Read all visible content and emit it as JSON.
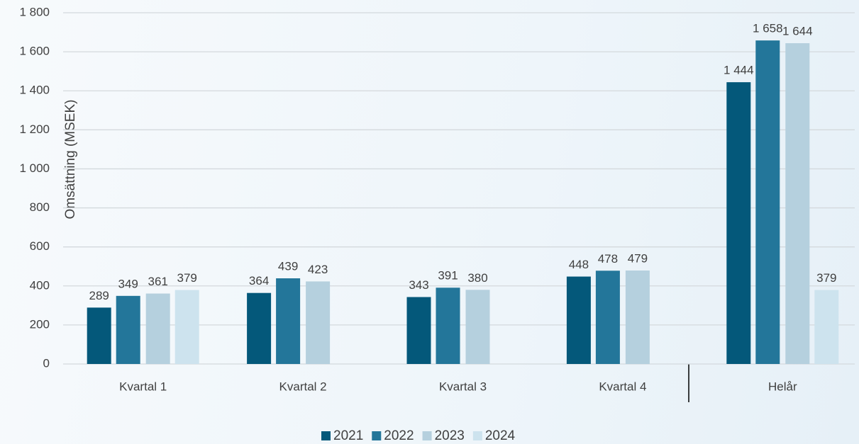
{
  "chart_data": {
    "type": "bar",
    "y_label": "Omsättning (MSEK)",
    "categories": [
      "Kvartal 1",
      "Kvartal 2",
      "Kvartal 3",
      "Kvartal 4",
      "Helår"
    ],
    "series": [
      {
        "name": "2021",
        "color": "#04587a",
        "values": [
          289,
          364,
          343,
          448,
          1444
        ],
        "value_labels": [
          "289",
          "364",
          "343",
          "448",
          "1 444"
        ]
      },
      {
        "name": "2022",
        "color": "#23769a",
        "values": [
          349,
          439,
          391,
          478,
          1658
        ],
        "value_labels": [
          "349",
          "439",
          "391",
          "478",
          "1 658"
        ]
      },
      {
        "name": "2023",
        "color": "#b5d0de",
        "values": [
          361,
          423,
          380,
          479,
          1644
        ],
        "value_labels": [
          "361",
          "423",
          "380",
          "479",
          "1 644"
        ]
      },
      {
        "name": "2024",
        "color": "#cde3ee",
        "values": [
          379,
          null,
          null,
          null,
          379
        ]
      }
    ],
    "ylim": [
      0,
      1800
    ],
    "yticks": [
      0,
      200,
      400,
      600,
      800,
      {
        "value": 1000,
        "label": "1 000"
      },
      {
        "value": 1200,
        "label": "1 200"
      },
      {
        "value": 1400,
        "label": "1 400"
      },
      {
        "value": 1600,
        "label": "1 600"
      },
      {
        "value": 1800,
        "label": "1 800"
      }
    ],
    "grid": true,
    "legend": "bottom"
  }
}
